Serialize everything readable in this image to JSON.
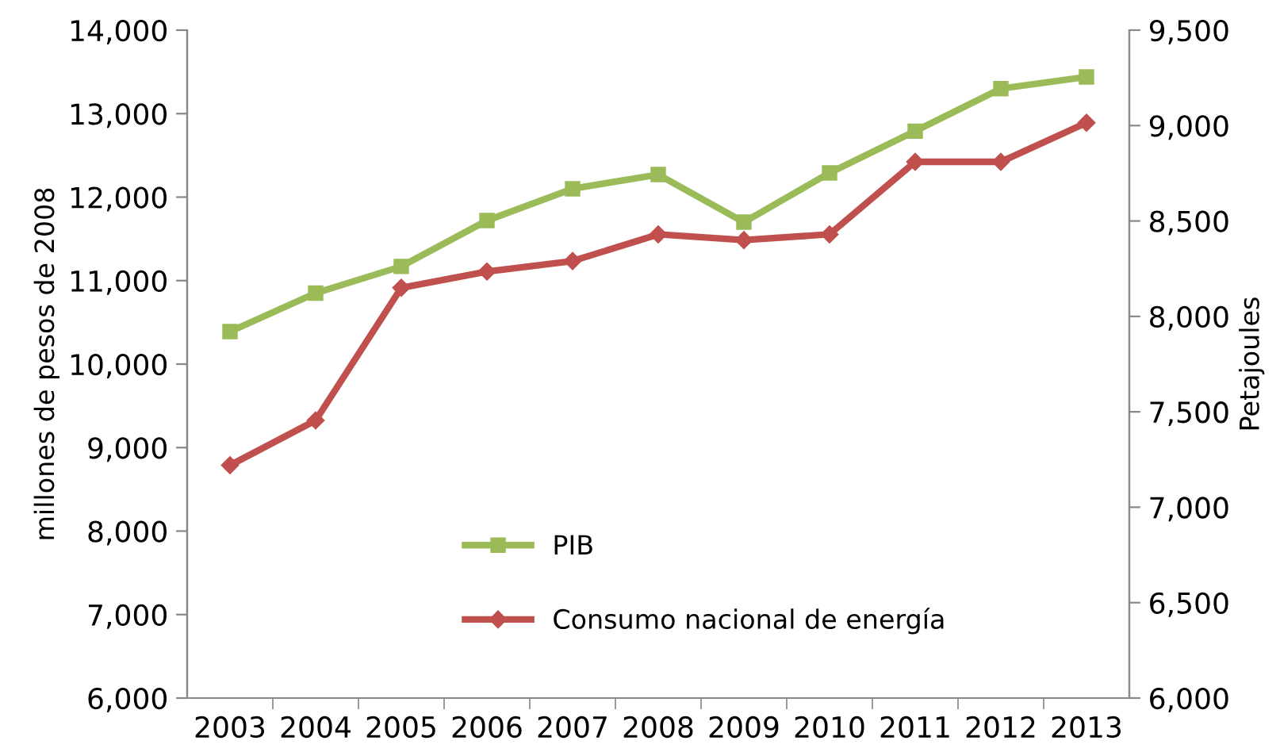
{
  "chart_data": {
    "type": "line",
    "ylabel": "millones de pesos de 2008",
    "y2label": "Petajoules",
    "categories": [
      "2003",
      "2004",
      "2005",
      "2006",
      "2007",
      "2008",
      "2009",
      "2010",
      "2011",
      "2012",
      "2013"
    ],
    "series": [
      {
        "name": "PIB",
        "color": "#9bbb59",
        "marker": "square",
        "values": [
          10390,
          10850,
          11170,
          11720,
          12100,
          12270,
          11700,
          12290,
          12790,
          13300,
          13440
        ]
      },
      {
        "name": "Consumo nacional de energía",
        "color": "#c0504d",
        "marker": "diamond",
        "axis": "y2",
        "values": [
          7220,
          7455,
          8150,
          8235,
          8290,
          8430,
          8400,
          8430,
          8810,
          8810,
          9015
        ]
      }
    ],
    "ylim": [
      6000,
      14000
    ],
    "yticks": [
      {
        "value": 6000,
        "label": "6,000"
      },
      {
        "value": 7000,
        "label": "7,000"
      },
      {
        "value": 8000,
        "label": "8,000"
      },
      {
        "value": 9000,
        "label": "9,000"
      },
      {
        "value": 10000,
        "label": "10,000"
      },
      {
        "value": 11000,
        "label": "11,000"
      },
      {
        "value": 12000,
        "label": "12,000"
      },
      {
        "value": 13000,
        "label": "13,000"
      },
      {
        "value": 14000,
        "label": "14,000"
      }
    ],
    "y2lim": [
      6000,
      9500
    ],
    "y2ticks": [
      {
        "value": 6000,
        "label": "6,000"
      },
      {
        "value": 6500,
        "label": "6,500"
      },
      {
        "value": 7000,
        "label": "7,000"
      },
      {
        "value": 7500,
        "label": "7,500"
      },
      {
        "value": 8000,
        "label": "8,000"
      },
      {
        "value": 8500,
        "label": "8,500"
      },
      {
        "value": 9000,
        "label": "9,000"
      },
      {
        "value": 9500,
        "label": "9,500"
      }
    ],
    "grid": false,
    "legend": "bottom",
    "line_style": "solid"
  }
}
